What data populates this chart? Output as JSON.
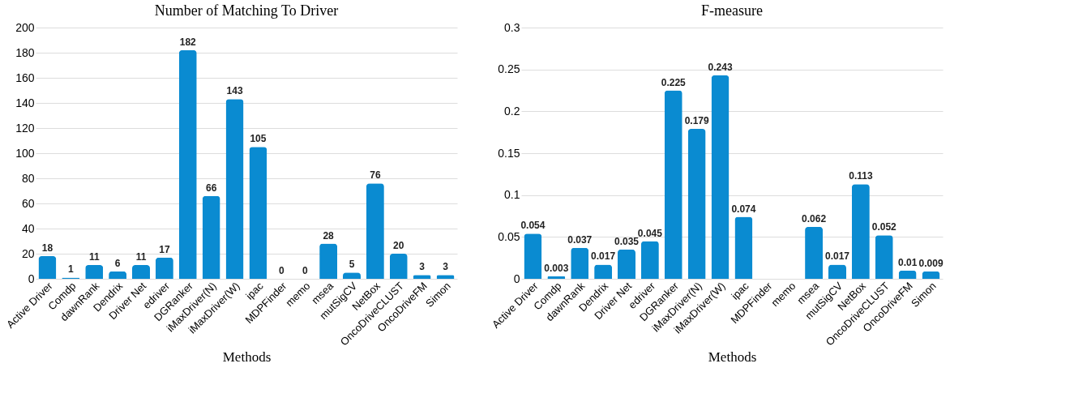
{
  "chart_data": [
    {
      "type": "bar",
      "title": "Number of Matching To Driver",
      "xlabel": "Methods",
      "categories": [
        "Active Driver",
        "Comdp",
        "dawnRank",
        "Dendrix",
        "Driver Net",
        "edriver",
        "DGRanker",
        "iMaxDriver(N)",
        "iMaxDriver(W)",
        "ipac",
        "MDPFinder",
        "memo",
        "msea",
        "mutSigCV",
        "NetBox",
        "OncoDriveCLUST",
        "OncoDriveFM",
        "Simon"
      ],
      "values": [
        18,
        1,
        11,
        6,
        11,
        17,
        182,
        66,
        143,
        105,
        0,
        0,
        28,
        5,
        76,
        20,
        3,
        3
      ],
      "color": "#0a8bd1",
      "ylim": [
        0,
        200
      ],
      "yticks": [
        0,
        20,
        40,
        60,
        80,
        100,
        120,
        140,
        160,
        180,
        200
      ],
      "grid": "y",
      "data_labels": true
    },
    {
      "type": "bar",
      "title": "F-measure",
      "xlabel": "Methods",
      "categories": [
        "Active Driver",
        "Comdp",
        "dawnRank",
        "Dendrix",
        "Driver Net",
        "edriver",
        "DGRanker",
        "iMaxDriver(N)",
        "iMaxDriver(W)",
        "ipac",
        "MDPFinder",
        "memo",
        "msea",
        "mutSigCV",
        "NetBox",
        "OncoDriveCLUST",
        "OncoDriveFM",
        "Simon"
      ],
      "values": [
        0.054,
        0.003,
        0.037,
        0.017,
        0.035,
        0.045,
        0.225,
        0.179,
        0.243,
        0.074,
        0,
        0,
        0.062,
        0.017,
        0.113,
        0.052,
        0.01,
        0.009
      ],
      "value_labels": [
        "0.054",
        "0.003",
        "0.037",
        "0.017",
        "0.035",
        "0.045",
        "0.225",
        "0.179",
        "0.243",
        "0.074",
        null,
        null,
        "0.062",
        "0.017",
        "0.113",
        "0.052",
        "0.01",
        "0.009"
      ],
      "color": "#0a8bd1",
      "ylim": [
        0,
        0.3
      ],
      "yticks": [
        0,
        0.05,
        0.1,
        0.15,
        0.2,
        0.25,
        0.3
      ],
      "grid": "y"
    }
  ]
}
